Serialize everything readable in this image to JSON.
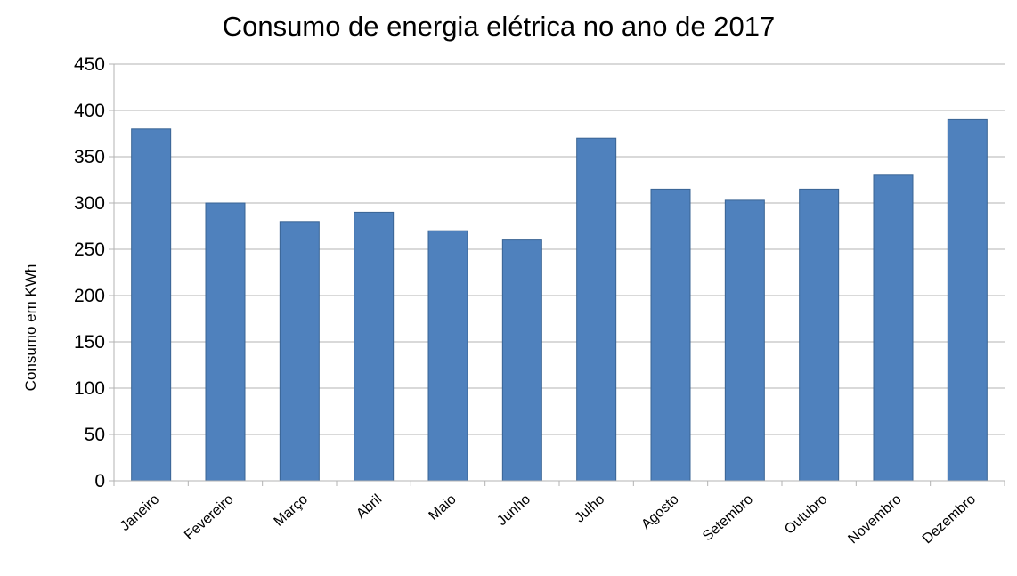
{
  "chart_data": {
    "type": "bar",
    "title": "Consumo de energia elétrica no  ano de 2017",
    "xlabel": "",
    "ylabel": "Consumo em KWh",
    "categories": [
      "Janeiro",
      "Fevereiro",
      "Março",
      "Abril",
      "Maio",
      "Junho",
      "Julho",
      "Agosto",
      "Setembro",
      "Outubro",
      "Novembro",
      "Dezembro"
    ],
    "values": [
      380,
      300,
      280,
      290,
      270,
      260,
      370,
      315,
      303,
      315,
      330,
      390
    ],
    "ylim": [
      0,
      450
    ],
    "yticks": [
      0,
      50,
      100,
      150,
      200,
      250,
      300,
      350,
      400,
      450
    ],
    "grid": true,
    "legend": "none",
    "colors": {
      "bar": "#4f81bd",
      "bar_edge": "#3a6494",
      "grid": "#b3b3b3",
      "axis": "#b3b3b3"
    }
  }
}
